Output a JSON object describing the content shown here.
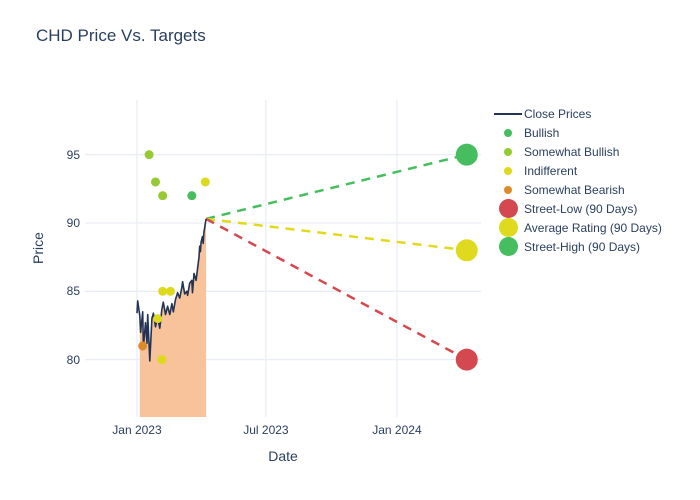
{
  "colors": {
    "text": "#2a3f5f",
    "gridline": "#e9eef6",
    "close_line": "#223354",
    "fill": "#f8c39a",
    "ratings": {
      "Bullish": "#46be5f",
      "Somewhat Bullish": "#96ca34",
      "Indifferent": "#ddd91c",
      "Somewhat Bearish": "#dd8b2a"
    },
    "street_low": "#d4494f",
    "average_rating": "#e0da1e",
    "street_high": "#46be5f"
  },
  "legend": {
    "items": [
      {
        "label": "Close Prices",
        "marker": "line",
        "color": "#223354"
      },
      {
        "label": "Bullish",
        "marker": "dot",
        "color": "#46be5f"
      },
      {
        "label": "Somewhat Bullish",
        "marker": "dot",
        "color": "#96ca34"
      },
      {
        "label": "Indifferent",
        "marker": "dot",
        "color": "#ddd91c"
      },
      {
        "label": "Somewhat Bearish",
        "marker": "dot",
        "color": "#dd8b2a"
      },
      {
        "label": "Street-Low (90 Days)",
        "marker": "big",
        "color": "#d4494f"
      },
      {
        "label": "Average Rating (90 Days)",
        "marker": "big",
        "color": "#e0da1e"
      },
      {
        "label": "Street-High (90 Days)",
        "marker": "big",
        "color": "#46be5f"
      }
    ]
  },
  "chart_data": {
    "type": "line",
    "title": "CHD Price Vs. Targets",
    "xlabel": "Date",
    "ylabel": "Price",
    "x_axis": {
      "range": [
        "2022-10-20",
        "2024-04-28"
      ],
      "ticks": [
        {
          "label": "Jan 2023",
          "date": "2023-01-01"
        },
        {
          "label": "Jul 2023",
          "date": "2023-07-01"
        },
        {
          "label": "Jan 2024",
          "date": "2024-01-01"
        }
      ]
    },
    "y_axis": {
      "range": [
        75.8,
        99.0
      ],
      "ticks": [
        80,
        85,
        90,
        95
      ]
    },
    "close_prices": {
      "name": "Close Prices",
      "dates": [
        "2023-01-01",
        "2023-01-02",
        "2023-01-05",
        "2023-01-06",
        "2023-01-09",
        "2023-01-10",
        "2023-01-13",
        "2023-01-15",
        "2023-01-16",
        "2023-01-19",
        "2023-01-22",
        "2023-01-24",
        "2023-01-27",
        "2023-01-30",
        "2023-02-02",
        "2023-02-05",
        "2023-02-07",
        "2023-02-10",
        "2023-02-13",
        "2023-02-16",
        "2023-02-19",
        "2023-02-21",
        "2023-02-24",
        "2023-02-27",
        "2023-03-02",
        "2023-03-05",
        "2023-03-06",
        "2023-03-09",
        "2023-03-12",
        "2023-03-13",
        "2023-03-16",
        "2023-03-19",
        "2023-03-20",
        "2023-03-22",
        "2023-03-25",
        "2023-03-29",
        "2023-03-30",
        "2023-03-31",
        "2023-04-01",
        "2023-04-03",
        "2023-04-04",
        "2023-04-05",
        "2023-04-07",
        "2023-04-08"
      ],
      "values": [
        83.4,
        84.3,
        83.2,
        82.0,
        83.5,
        80.9,
        82.7,
        81.2,
        83.3,
        79.9,
        83.0,
        83.4,
        82.4,
        83.1,
        82.3,
        83.7,
        84.2,
        83.3,
        83.9,
        83.3,
        84.1,
        83.5,
        84.4,
        84.9,
        84.5,
        85.3,
        85.7,
        84.8,
        85.0,
        84.7,
        85.6,
        85.8,
        84.9,
        86.3,
        85.8,
        87.5,
        88.3,
        87.9,
        88.6,
        89.0,
        88.5,
        89.3,
        90.0,
        90.3
      ]
    },
    "fill": {
      "start_date": "2023-01-05",
      "color": "#f8c39a"
    },
    "ratings": [
      {
        "date": "2023-01-18",
        "price": 95,
        "rating": "Somewhat Bullish"
      },
      {
        "date": "2023-01-27",
        "price": 93,
        "rating": "Somewhat Bullish"
      },
      {
        "date": "2023-02-06",
        "price": 92,
        "rating": "Somewhat Bullish"
      },
      {
        "date": "2023-03-19",
        "price": 92,
        "rating": "Bullish"
      },
      {
        "date": "2023-04-07",
        "price": 93,
        "rating": "Indifferent"
      },
      {
        "date": "2023-02-06",
        "price": 85,
        "rating": "Indifferent"
      },
      {
        "date": "2023-02-17",
        "price": 85,
        "rating": "Indifferent"
      },
      {
        "date": "2023-01-30",
        "price": 83,
        "rating": "Indifferent"
      },
      {
        "date": "2023-01-09",
        "price": 81,
        "rating": "Somewhat Bearish"
      },
      {
        "date": "2023-02-05",
        "price": 80,
        "rating": "Indifferent"
      }
    ],
    "forecasts": {
      "start": {
        "date": "2023-04-08",
        "price": 90.3
      },
      "end_date": "2024-04-08",
      "targets": [
        {
          "name": "Street-High (90 Days)",
          "price": 95,
          "color": "#46be5f"
        },
        {
          "name": "Average Rating (90 Days)",
          "price": 88,
          "color": "#e0da1e"
        },
        {
          "name": "Street-Low (90 Days)",
          "price": 80,
          "color": "#d4494f"
        }
      ]
    }
  }
}
